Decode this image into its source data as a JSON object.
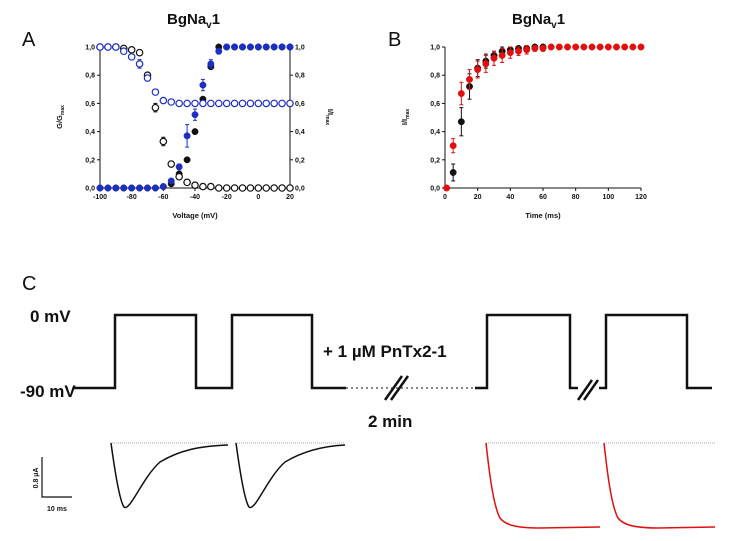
{
  "panels": {
    "A": {
      "letter": "A",
      "title": "BgNa",
      "title_sub": "v",
      "title_tail": "1"
    },
    "B": {
      "letter": "B",
      "title": "BgNa",
      "title_sub": "v",
      "title_tail": "1"
    },
    "C": {
      "letter": "C"
    }
  },
  "protocol": {
    "label_0mv": "0 mV",
    "label_m90mv": "-90 mV",
    "toxin_label": "+ 1 µM PnTx2-1",
    "time_label": "2 min",
    "scalebar_y": "0.8 µA",
    "scalebar_x": "10 ms"
  },
  "colors": {
    "black": "#111111",
    "blue": "#1c2fc2",
    "red": "#e01010"
  },
  "chart_data": [
    {
      "type": "scatter",
      "panel": "A",
      "xlabel": "Voltage (mV)",
      "ylabel": "G/G",
      "ylabel_sub": "max",
      "y2label": "I/I",
      "y2label_sub": "max",
      "xlim": [
        -100,
        20
      ],
      "ylim": [
        0,
        1.0
      ],
      "xticks": [
        -100,
        -80,
        -60,
        -40,
        -20,
        0,
        20
      ],
      "yticks": [
        "0,0",
        "0,2",
        "0,4",
        "0,6",
        "0,8",
        "1,0"
      ],
      "y2ticks": [
        "0,0",
        "0,2",
        "0,4",
        "0,6",
        "0,8",
        "1,0"
      ],
      "series": [
        {
          "marker": "filled",
          "color": "#111111",
          "x": [
            -100,
            -95,
            -90,
            -85,
            -80,
            -75,
            -70,
            -65,
            -60,
            -55,
            -50,
            -45,
            -40,
            -35,
            -30,
            -25,
            -20,
            -15,
            -10,
            -5,
            0,
            5,
            10,
            15,
            20
          ],
          "y": [
            0,
            0,
            0,
            0,
            0,
            0,
            0,
            0,
            0.01,
            0.03,
            0.1,
            0.2,
            0.4,
            0.63,
            0.86,
            1.0,
            1.0,
            1.0,
            1.0,
            1.0,
            1.0,
            1.0,
            1.0,
            1.0,
            1.0
          ]
        },
        {
          "marker": "filled",
          "color": "#1c2fc2",
          "x": [
            -100,
            -95,
            -90,
            -85,
            -80,
            -75,
            -70,
            -65,
            -60,
            -55,
            -50,
            -45,
            -40,
            -35,
            -30,
            -25,
            -20,
            -15,
            -10,
            -5,
            0,
            5,
            10,
            15,
            20
          ],
          "y": [
            0,
            0,
            0,
            0,
            0,
            0,
            0,
            0,
            0.01,
            0.05,
            0.15,
            0.37,
            0.52,
            0.73,
            0.88,
            0.97,
            1.0,
            1.0,
            1.0,
            1.0,
            1.0,
            1.0,
            1.0,
            1.0,
            1.0
          ],
          "err": [
            0,
            0,
            0,
            0,
            0,
            0,
            0,
            0,
            0,
            0.01,
            0.02,
            0.08,
            0.04,
            0.04,
            0.03,
            0.02,
            0,
            0,
            0,
            0,
            0,
            0,
            0,
            0,
            0
          ]
        },
        {
          "marker": "open",
          "color": "#111111",
          "x": [
            -100,
            -95,
            -90,
            -85,
            -80,
            -75,
            -70,
            -65,
            -60,
            -55,
            -50,
            -45,
            -40,
            -35,
            -30,
            -25,
            -20,
            -15,
            -10,
            -5,
            0,
            5,
            10,
            15,
            20
          ],
          "y": [
            1.0,
            1.0,
            1.0,
            0.99,
            0.98,
            0.96,
            0.8,
            0.57,
            0.33,
            0.17,
            0.08,
            0.04,
            0.02,
            0.01,
            0.01,
            0,
            0,
            0,
            0,
            0,
            0,
            0,
            0,
            0,
            0
          ],
          "err": [
            0,
            0,
            0,
            0.01,
            0.01,
            0.02,
            0.02,
            0.03,
            0.03,
            0.02,
            0.02,
            0.01,
            0,
            0,
            0,
            0,
            0,
            0,
            0,
            0,
            0,
            0,
            0,
            0,
            0
          ]
        },
        {
          "marker": "open",
          "color": "#1c2fc2",
          "x": [
            -100,
            -95,
            -90,
            -85,
            -80,
            -75,
            -70,
            -65,
            -60,
            -55,
            -50,
            -45,
            -40,
            -35,
            -30,
            -25,
            -20,
            -15,
            -10,
            -5,
            0,
            5,
            10,
            15,
            20
          ],
          "y": [
            1.0,
            1.0,
            1.0,
            0.97,
            0.93,
            0.88,
            0.78,
            0.68,
            0.62,
            0.61,
            0.6,
            0.6,
            0.6,
            0.6,
            0.6,
            0.6,
            0.6,
            0.6,
            0.6,
            0.6,
            0.6,
            0.6,
            0.6,
            0.6,
            0.6
          ],
          "err": [
            0,
            0,
            0,
            0.01,
            0.02,
            0.03,
            0.02,
            0.02,
            0.01,
            0,
            0,
            0,
            0,
            0,
            0,
            0,
            0,
            0,
            0,
            0,
            0,
            0,
            0,
            0,
            0
          ]
        }
      ]
    },
    {
      "type": "scatter",
      "panel": "B",
      "xlabel": "Time (ms)",
      "ylabel": "I/I",
      "ylabel_sub": "max",
      "xlim": [
        0,
        120
      ],
      "ylim": [
        0,
        1.0
      ],
      "xticks": [
        0,
        20,
        40,
        60,
        80,
        100,
        120
      ],
      "yticks": [
        "0,0",
        "0,2",
        "0,4",
        "0,6",
        "0,8",
        "1,0"
      ],
      "series": [
        {
          "marker": "filled",
          "color": "#111111",
          "x": [
            5,
            10,
            15,
            20,
            25,
            30,
            35,
            40,
            45,
            50,
            55,
            60
          ],
          "y": [
            0.11,
            0.47,
            0.72,
            0.85,
            0.9,
            0.94,
            0.97,
            0.98,
            0.99,
            0.99,
            1.0,
            1.0
          ],
          "err": [
            0.06,
            0.1,
            0.09,
            0.06,
            0.05,
            0.03,
            0.03,
            0.02,
            0.01,
            0.01,
            0.01,
            0
          ]
        },
        {
          "marker": "filled",
          "color": "#e01010",
          "x": [
            1,
            5,
            10,
            15,
            20,
            25,
            30,
            35,
            40,
            45,
            50,
            55,
            60,
            65,
            70,
            75,
            80,
            85,
            90,
            95,
            100,
            105,
            110,
            115,
            120
          ],
          "y": [
            0,
            0.3,
            0.67,
            0.77,
            0.84,
            0.88,
            0.92,
            0.94,
            0.96,
            0.97,
            0.98,
            0.99,
            0.99,
            1.0,
            1.0,
            1.0,
            1.0,
            1.0,
            1.0,
            1.0,
            1.0,
            1.0,
            1.0,
            1.0,
            1.0
          ],
          "err": [
            0,
            0.05,
            0.08,
            0.07,
            0.06,
            0.06,
            0.05,
            0.05,
            0.04,
            0.03,
            0.03,
            0.02,
            0.02,
            0,
            0,
            0,
            0,
            0,
            0,
            0,
            0,
            0,
            0,
            0,
            0
          ]
        }
      ]
    }
  ]
}
